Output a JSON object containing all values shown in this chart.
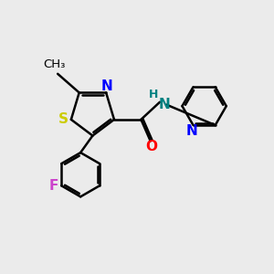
{
  "background_color": "#ebebeb",
  "bond_color": "#000000",
  "bond_width": 1.8,
  "font_size": 11,
  "figsize": [
    3.0,
    3.0
  ],
  "dpi": 100,
  "xlim": [
    0,
    10
  ],
  "ylim": [
    0,
    10
  ],
  "s_color": "#cccc00",
  "n_color": "#0000ff",
  "o_color": "#ff0000",
  "f_color": "#cc44cc",
  "nh_color": "#008080",
  "c_color": "#000000"
}
